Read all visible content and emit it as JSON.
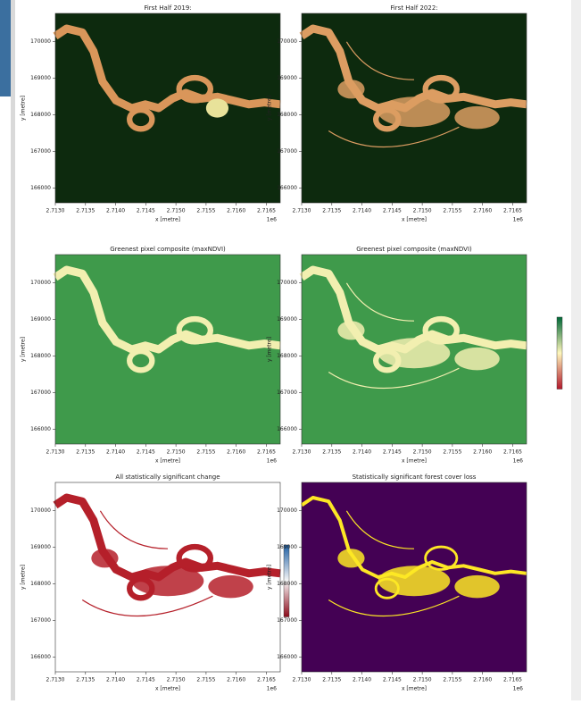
{
  "chart_data": [
    {
      "type": "image",
      "title": "First Half 2019:",
      "xlabel": "x [metre]",
      "ylabel": "y [metre]",
      "x_offset": "1e6",
      "xlim": [
        2.713,
        2.71673
      ],
      "ylim": [
        165600,
        170770
      ],
      "xticks": [
        {
          "value": 2.713,
          "label": "2.7130"
        },
        {
          "value": 2.7135,
          "label": "2.7135"
        },
        {
          "value": 2.714,
          "label": "2.7140"
        },
        {
          "value": 2.7145,
          "label": "2.7145"
        },
        {
          "value": 2.715,
          "label": "2.7150"
        },
        {
          "value": 2.7155,
          "label": "2.7155"
        },
        {
          "value": 2.716,
          "label": "2.7160"
        },
        {
          "value": 2.7165,
          "label": "2.7165"
        }
      ],
      "yticks": [
        166000,
        167000,
        168000,
        169000,
        170000
      ],
      "background": "#0d2a0e",
      "color": "#d9965a"
    },
    {
      "type": "image",
      "title": "First Half 2022:",
      "xlabel": "x [metre]",
      "ylabel": "y [metre]",
      "x_offset": "1e6",
      "xlim": [
        2.713,
        2.71673
      ],
      "ylim": [
        165600,
        170770
      ],
      "xticks": [
        {
          "value": 2.713,
          "label": "2.7130"
        },
        {
          "value": 2.7135,
          "label": "2.7135"
        },
        {
          "value": 2.714,
          "label": "2.7140"
        },
        {
          "value": 2.7145,
          "label": "2.7145"
        },
        {
          "value": 2.715,
          "label": "2.7150"
        },
        {
          "value": 2.7155,
          "label": "2.7155"
        },
        {
          "value": 2.716,
          "label": "2.7160"
        },
        {
          "value": 2.7165,
          "label": "2.7165"
        }
      ],
      "yticks": [
        166000,
        167000,
        168000,
        169000,
        170000
      ],
      "background": "#0d2a0e",
      "color": "#dc9d62"
    },
    {
      "type": "image",
      "title": "Greenest pixel composite (maxNDVI)",
      "xlabel": "x [metre]",
      "ylabel": "y [metre]",
      "x_offset": "1e6",
      "xlim": [
        2.713,
        2.71673
      ],
      "ylim": [
        165600,
        170770
      ],
      "xticks": [
        {
          "value": 2.713,
          "label": "2.7130"
        },
        {
          "value": 2.7135,
          "label": "2.7135"
        },
        {
          "value": 2.714,
          "label": "2.7140"
        },
        {
          "value": 2.7145,
          "label": "2.7145"
        },
        {
          "value": 2.715,
          "label": "2.7150"
        },
        {
          "value": 2.7155,
          "label": "2.7155"
        },
        {
          "value": 2.716,
          "label": "2.7160"
        },
        {
          "value": 2.7165,
          "label": "2.7165"
        }
      ],
      "yticks": [
        166000,
        167000,
        168000,
        169000,
        170000
      ],
      "background": "#3f9a4b",
      "color": "#f2efb0"
    },
    {
      "type": "image",
      "title": "Greenest pixel composite (maxNDVI)",
      "xlabel": "x [metre]",
      "ylabel": "y [metre]",
      "x_offset": "1e6",
      "xlim": [
        2.713,
        2.71673
      ],
      "ylim": [
        165600,
        170770
      ],
      "xticks": [
        {
          "value": 2.713,
          "label": "2.7130"
        },
        {
          "value": 2.7135,
          "label": "2.7135"
        },
        {
          "value": 2.714,
          "label": "2.7140"
        },
        {
          "value": 2.7145,
          "label": "2.7145"
        },
        {
          "value": 2.715,
          "label": "2.7150"
        },
        {
          "value": 2.7155,
          "label": "2.7155"
        },
        {
          "value": 2.716,
          "label": "2.7160"
        },
        {
          "value": 2.7165,
          "label": "2.7165"
        }
      ],
      "yticks": [
        166000,
        167000,
        168000,
        169000,
        170000
      ],
      "background": "#3f9a4b",
      "color": "#f2efb0",
      "colorbar": [
        "#b2182b",
        "#fff7bc",
        "#006837"
      ]
    },
    {
      "type": "image",
      "title": "All statistically significant change",
      "xlabel": "x [metre]",
      "ylabel": "y [metre]",
      "x_offset": "1e6",
      "xlim": [
        2.713,
        2.71673
      ],
      "ylim": [
        165600,
        170770
      ],
      "xticks": [
        {
          "value": 2.713,
          "label": "2.7130"
        },
        {
          "value": 2.7135,
          "label": "2.7135"
        },
        {
          "value": 2.714,
          "label": "2.7140"
        },
        {
          "value": 2.7145,
          "label": "2.7145"
        },
        {
          "value": 2.715,
          "label": "2.7150"
        },
        {
          "value": 2.7155,
          "label": "2.7155"
        },
        {
          "value": 2.716,
          "label": "2.7160"
        },
        {
          "value": 2.7165,
          "label": "2.7165"
        }
      ],
      "yticks": [
        166000,
        167000,
        168000,
        169000,
        170000
      ],
      "background": "#ffffff",
      "color": "#b5202a",
      "colorbar": [
        "#8b0a1a",
        "#f7f7f7",
        "#1f5fa3"
      ]
    },
    {
      "type": "image",
      "title": "Statistically significant forest cover loss",
      "xlabel": "x [metre]",
      "ylabel": "y [metre]",
      "x_offset": "1e6",
      "xlim": [
        2.713,
        2.71673
      ],
      "ylim": [
        165600,
        170770
      ],
      "xticks": [
        {
          "value": 2.713,
          "label": "2.7130"
        },
        {
          "value": 2.7135,
          "label": "2.7135"
        },
        {
          "value": 2.714,
          "label": "2.7140"
        },
        {
          "value": 2.7145,
          "label": "2.7145"
        },
        {
          "value": 2.715,
          "label": "2.7150"
        },
        {
          "value": 2.7155,
          "label": "2.7155"
        },
        {
          "value": 2.716,
          "label": "2.7160"
        },
        {
          "value": 2.7165,
          "label": "2.7165"
        }
      ],
      "yticks": [
        166000,
        167000,
        168000,
        169000,
        170000
      ],
      "background": "#440154",
      "color": "#fde725"
    }
  ]
}
